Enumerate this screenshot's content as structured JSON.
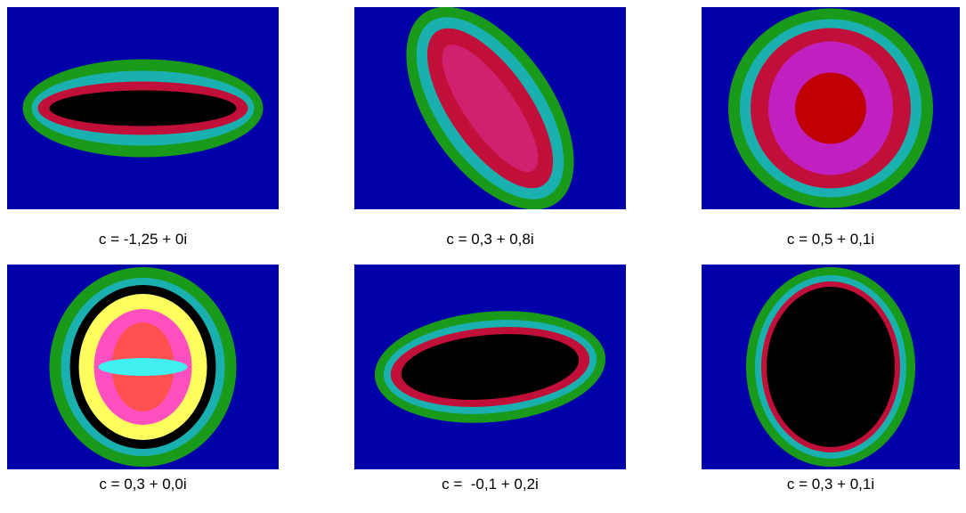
{
  "figures": [
    {
      "caption": "c = -1,25 + 0i"
    },
    {
      "caption": "c = 0,3 + 0,8i"
    },
    {
      "caption": "c = 0,5 + 0,1i"
    },
    {
      "caption": "c = 0,3 + 0,0i"
    },
    {
      "caption": "c =  -0,1 + 0,2i"
    },
    {
      "caption": "c = 0,3 + 0,1i"
    }
  ]
}
